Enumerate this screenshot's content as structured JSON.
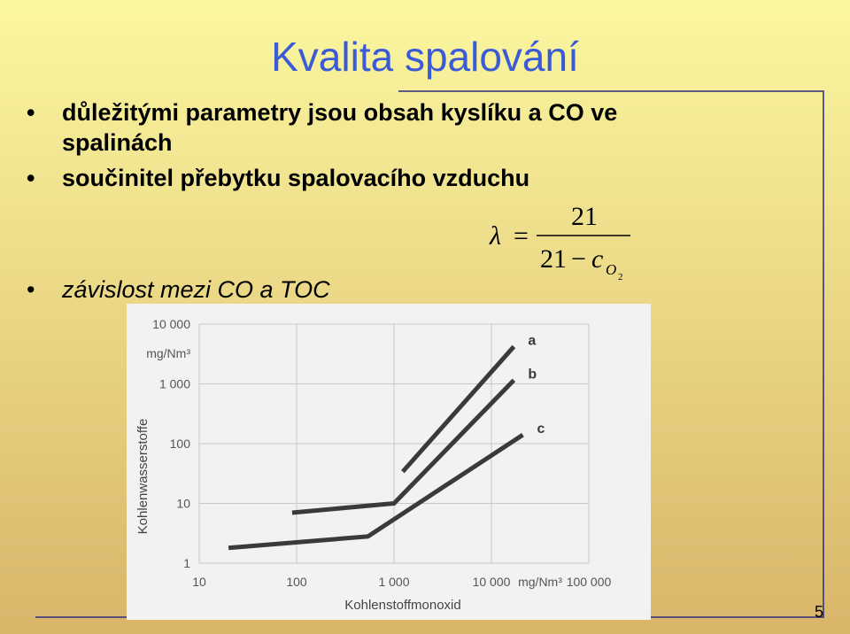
{
  "title": "Kvalita  spalování",
  "bullets": [
    {
      "lines": [
        "důležitými parametry jsou obsah kyslíku a CO ve",
        "spalinách"
      ]
    },
    {
      "lines": [
        "součinitel přebytku spalovacího vzduchu"
      ]
    },
    {
      "lines": [
        "závislost mezi CO a TOC"
      ]
    }
  ],
  "formula": {
    "lambda": "λ",
    "equals": "=",
    "numerator": "21",
    "denominator": "21",
    "minus": "−",
    "variable": "c",
    "subscript": "O",
    "subscript_index": "2"
  },
  "page_number": "5",
  "chart_data": {
    "type": "line",
    "x_label": "Kohlenstoffmonoxid",
    "y_label": "Kohlenwasserstoffe",
    "x_unit": "mg/Nm³",
    "y_unit": "mg/Nm³",
    "xscale": "log",
    "yscale": "log",
    "xlim": [
      10,
      100000
    ],
    "ylim": [
      1,
      10000
    ],
    "xticks": [
      10,
      100,
      {
        "value": 1000,
        "label": "1 000"
      },
      {
        "value": 10000,
        "label": "10 000"
      },
      {
        "value": 100000,
        "label": "100 000"
      }
    ],
    "yticks": [
      1,
      10,
      100,
      {
        "value": 1000,
        "label": "1 000"
      },
      {
        "value": 10000,
        "label": "10 000"
      }
    ],
    "grid": true,
    "series": [
      {
        "name": "a",
        "color": "#3a3a3a",
        "x": [
          1230,
          17000
        ],
        "values": [
          34,
          4200
        ]
      },
      {
        "name": "b",
        "color": "#3a3a3a",
        "x": [
          90,
          1000,
          17000
        ],
        "values": [
          7,
          10,
          1150
        ]
      },
      {
        "name": "c",
        "color": "#3a3a3a",
        "x": [
          20,
          540,
          21000
        ],
        "values": [
          1.8,
          2.8,
          140
        ]
      }
    ]
  }
}
